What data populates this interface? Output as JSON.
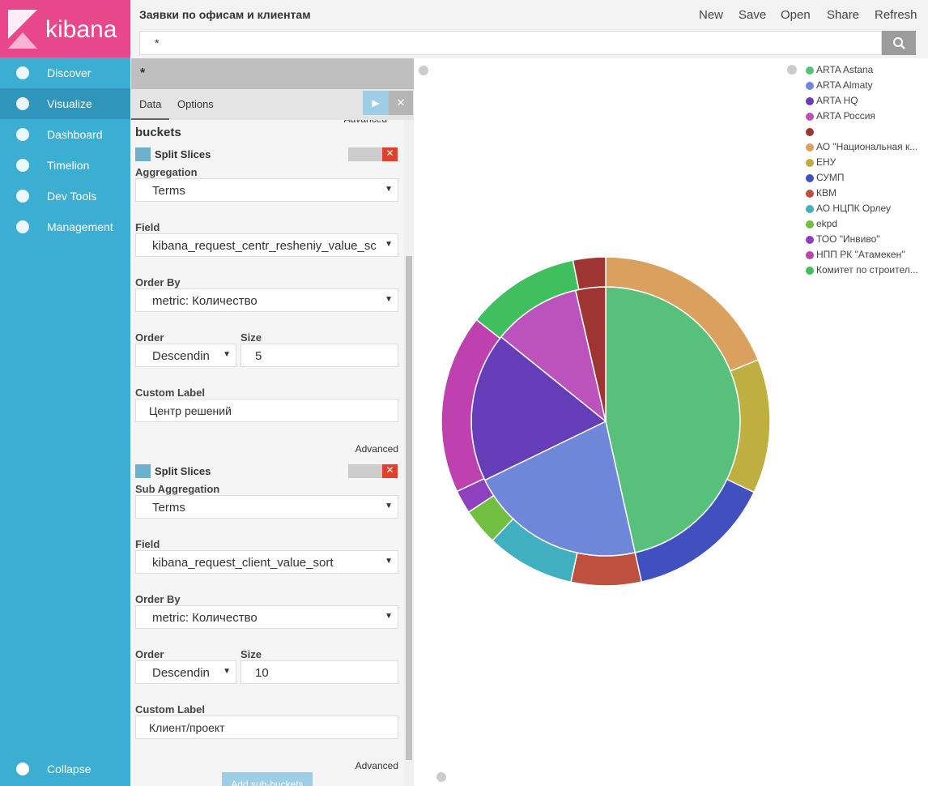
{
  "logo": "kibana",
  "nav": {
    "items": [
      "Discover",
      "Visualize",
      "Dashboard",
      "Timelion",
      "Dev Tools",
      "Management"
    ],
    "collapse": "Collapse"
  },
  "header": {
    "title": "Заявки по офисам и клиентам",
    "menu": [
      "New",
      "Save",
      "Open",
      "Share",
      "Refresh"
    ],
    "query": "*"
  },
  "editor": {
    "index_pattern": "*",
    "tabs": [
      "Data",
      "Options"
    ],
    "top_advanced": "Advanced",
    "section": "buckets",
    "buckets": [
      {
        "title": "Split Slices",
        "aggregation_label": "Aggregation",
        "aggregation": "Terms",
        "field_label": "Field",
        "field": "kibana_request_centr_resheniy_value_sc",
        "order_by_label": "Order By",
        "order_by": "metric: Количество",
        "order_label": "Order",
        "order": "Descendin",
        "size_label": "Size",
        "size": 5,
        "custom_label_label": "Custom Label",
        "custom_label": "Центр решений",
        "advanced": "Advanced"
      },
      {
        "title": "Split Slices",
        "aggregation_label": "Sub Aggregation",
        "aggregation": "Terms",
        "field_label": "Field",
        "field": "kibana_request_client_value_sort",
        "order_by_label": "Order By",
        "order_by": "metric: Количество",
        "order_label": "Order",
        "order": "Descendin",
        "size_label": "Size",
        "size": 10,
        "custom_label_label": "Custom Label",
        "custom_label": "Клиент/проект",
        "advanced": "Advanced"
      }
    ],
    "add_button": "Add sub-buckets"
  },
  "chart_data": {
    "type": "pie",
    "legend": [
      {
        "name": "ARTA Astana",
        "color": "#57c17b"
      },
      {
        "name": "ARTA Almaty",
        "color": "#6f87d8"
      },
      {
        "name": "ARTA HQ",
        "color": "#663db8"
      },
      {
        "name": "ARTA Россия",
        "color": "#bc52bc"
      },
      {
        "name": null,
        "color": "#9e3533"
      },
      {
        "name": "АО \"Национальная к...",
        "color": "#daa05d"
      },
      {
        "name": "ЕНУ",
        "color": "#bfaf40"
      },
      {
        "name": "СУМП",
        "color": "#4050bf"
      },
      {
        "name": "КВМ",
        "color": "#bf5040"
      },
      {
        "name": "АО НЦПК Орлеу",
        "color": "#40afbf"
      },
      {
        "name": "ekpd",
        "color": "#70bf40"
      },
      {
        "name": "ТОО \"Инвиво\"",
        "color": "#8f40bf"
      },
      {
        "name": "НПП РК \"Атамекен\"",
        "color": "#bf40af"
      },
      {
        "name": "Комитет по строител...",
        "color": "#40bf5f"
      }
    ],
    "inner": {
      "names": [
        "ARTA Astana",
        "ARTA Almaty",
        "ARTA HQ",
        "ARTA Россия",
        null
      ],
      "values": [
        46.5,
        21.3,
        18,
        10.6,
        3.6
      ]
    },
    "outer": {
      "names": [
        "АО \"Национальная к...",
        "ЕНУ",
        "СУМП",
        "КВМ",
        "АО НЦПК Орлеу",
        "ekpd",
        "ТОО \"Инвиво\"",
        "НПП РК \"Атамекен\"",
        "Комитет по строител...",
        null
      ],
      "values": [
        18.9,
        13.2,
        14.4,
        6.9,
        8.7,
        3.6,
        2.3,
        17.6,
        11.2,
        3.2
      ]
    }
  }
}
